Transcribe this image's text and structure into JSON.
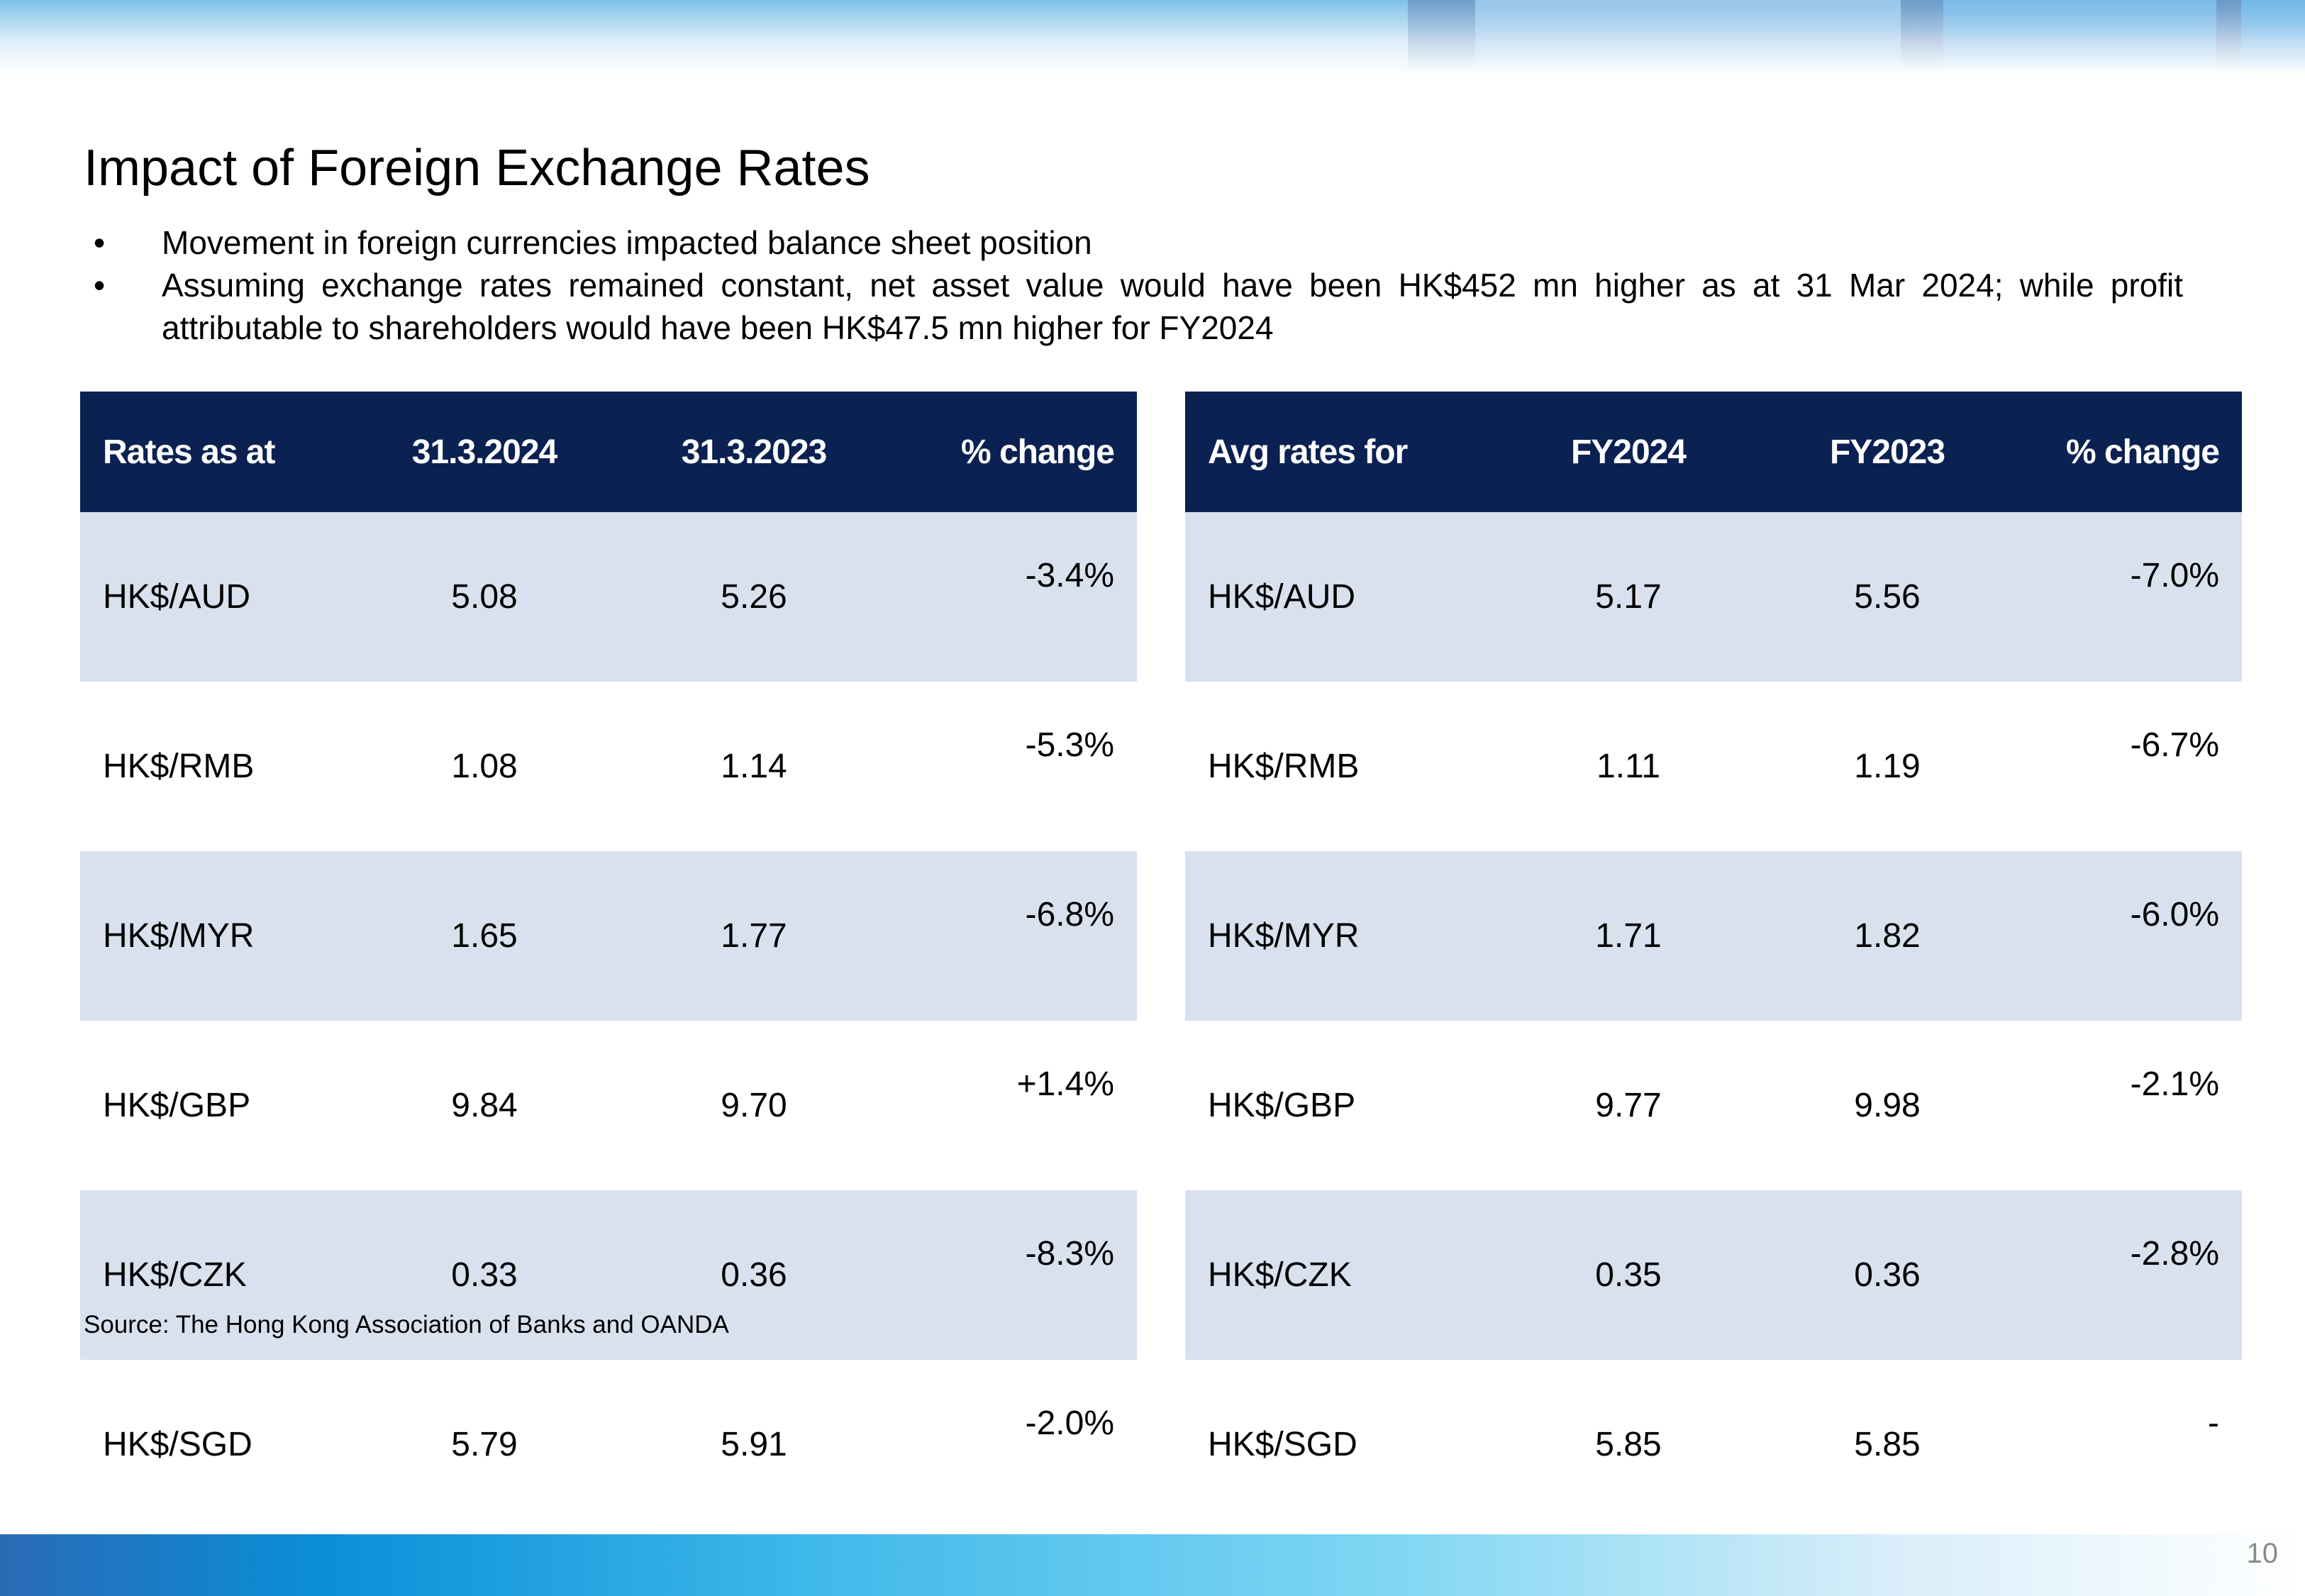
{
  "title": "Impact of Foreign Exchange Rates",
  "bullets": [
    "Movement in foreign currencies impacted balance sheet position",
    "Assuming exchange rates remained constant, net asset value would have been HK$452 mn higher as at 31 Mar 2024; while profit attributable to shareholders would have been HK$47.5 mn higher for FY2024"
  ],
  "bullet_symbol": "•",
  "table_left": {
    "headers": [
      "Rates as at",
      "31.3.2024",
      "31.3.2023",
      "% change"
    ],
    "rows": [
      [
        "HK$/AUD",
        "5.08",
        "5.26",
        "-3.4%"
      ],
      [
        "HK$/RMB",
        "1.08",
        "1.14",
        "-5.3%"
      ],
      [
        "HK$/MYR",
        "1.65",
        "1.77",
        "-6.8%"
      ],
      [
        "HK$/GBP",
        "9.84",
        "9.70",
        "+1.4%"
      ],
      [
        "HK$/CZK",
        "0.33",
        "0.36",
        "-8.3%"
      ],
      [
        "HK$/SGD",
        "5.79",
        "5.91",
        "-2.0%"
      ]
    ]
  },
  "table_right": {
    "headers": [
      "Avg rates for",
      "FY2024",
      "FY2023",
      "% change"
    ],
    "rows": [
      [
        "HK$/AUD",
        "5.17",
        "5.56",
        "-7.0%"
      ],
      [
        "HK$/RMB",
        "1.11",
        "1.19",
        "-6.7%"
      ],
      [
        "HK$/MYR",
        "1.71",
        "1.82",
        "-6.0%"
      ],
      [
        "HK$/GBP",
        "9.77",
        "9.98",
        "-2.1%"
      ],
      [
        "HK$/CZK",
        "0.35",
        "0.36",
        "-2.8%"
      ],
      [
        "HK$/SGD",
        "5.85",
        "5.85",
        "-"
      ]
    ]
  },
  "source": "Source: The Hong Kong Association of Banks and OANDA",
  "page_number": "10",
  "colors": {
    "header_bg": "#0a2152",
    "row_shade": "#d9e1ef",
    "page_number": "#8a8a8a"
  }
}
